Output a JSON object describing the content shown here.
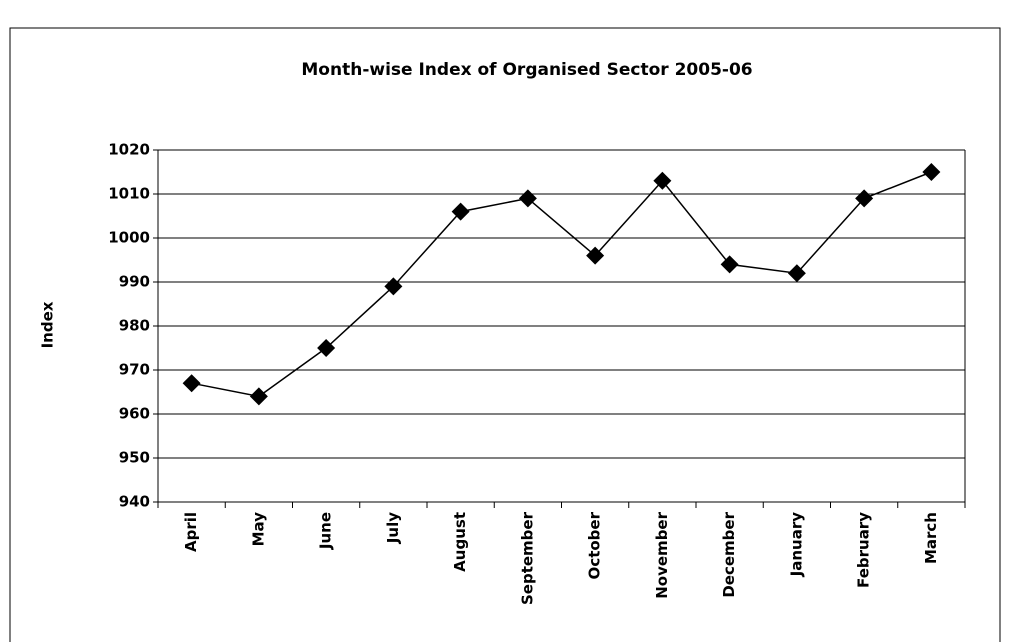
{
  "chart_data": {
    "type": "line",
    "title": "Month-wise Index of Organised Sector 2005-06",
    "y_label": "Index",
    "categories": [
      "April",
      "May",
      "June",
      "July",
      "August",
      "September",
      "October",
      "November",
      "December",
      "January",
      "February",
      "March"
    ],
    "values": [
      967,
      964,
      975,
      989,
      1006,
      1009,
      996,
      1013,
      994,
      992,
      1009,
      1015
    ],
    "color": "#000000",
    "ylim": [
      940,
      1020
    ],
    "yticks": [
      940,
      950,
      960,
      970,
      980,
      990,
      1000,
      1010,
      1020
    ],
    "grid": true
  }
}
